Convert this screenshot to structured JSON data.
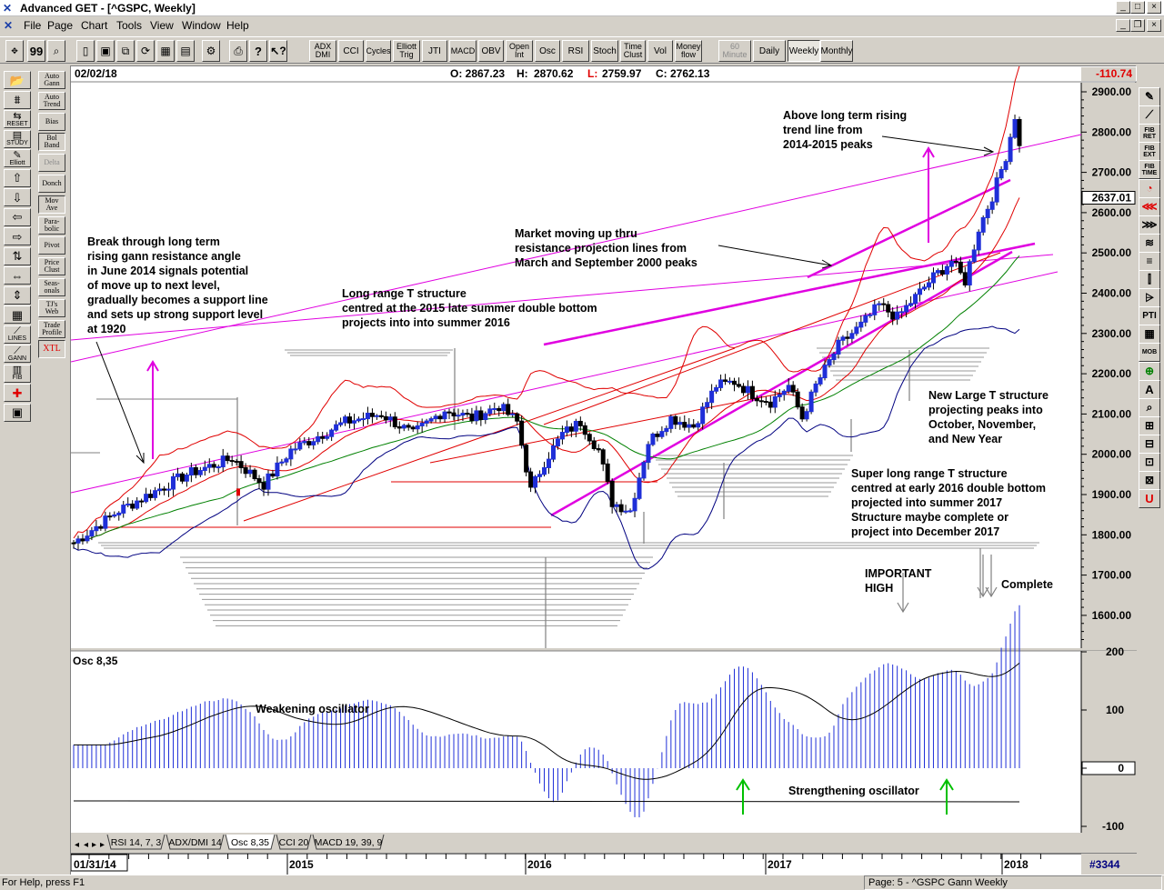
{
  "window": {
    "title": "Advanced GET - [^GSPC, Weekly]",
    "controls": [
      "_",
      "□",
      "×"
    ]
  },
  "menu": [
    "File",
    "Page",
    "Chart",
    "Tools",
    "View",
    "Window",
    "Help"
  ],
  "toolbar": {
    "studies": [
      "ADX DMI",
      "CCI",
      "Cycles",
      "Elliott Trig",
      "JTI",
      "MACD",
      "OBV",
      "Open Int",
      "Osc",
      "RSI",
      "Stoch",
      "Time Clust",
      "Vol",
      "Money flow"
    ],
    "periods": [
      "60 Minute",
      "Daily",
      "Weekly",
      "Monthly"
    ]
  },
  "left_tools": {
    "col1": [
      "",
      "",
      "RESET",
      "STUDY",
      "Elliott",
      "",
      "",
      "",
      "",
      "",
      "",
      "",
      "",
      "LINES",
      "GANN",
      "FIB",
      "",
      ""
    ],
    "col2": [
      "Auto Gann",
      "Auto Trend",
      "Bias",
      "Bol Band",
      "Delta",
      "Donch",
      "Mov Ave",
      "Para- bolic",
      "Pivot",
      "Price Clust",
      "Seas- onals",
      "TJ's Web",
      "Trade Profile",
      "XTL"
    ]
  },
  "right_tools": [
    "",
    "",
    "FIB RET",
    "FIB EXT",
    "FIB TIME",
    "",
    "",
    "",
    "",
    "",
    "",
    "",
    "PTI",
    "",
    "MOB",
    "",
    "A",
    "",
    "",
    "",
    "",
    "",
    "U"
  ],
  "info_bar": {
    "date": "02/02/18",
    "open": "O: 2867.23",
    "high_label": "H:",
    "high": "2870.62",
    "low_label": "L:",
    "low": "2759.97",
    "close": "C: 2762.13",
    "change": "-110.74"
  },
  "price_axis": {
    "labels": [
      "2900.00",
      "2800.00",
      "2700.00",
      "2600.00",
      "2500.00",
      "2400.00",
      "2300.00",
      "2200.00",
      "2100.00",
      "2000.00",
      "1900.00",
      "1800.00",
      "1700.00",
      "1600.00"
    ],
    "current": "2637.01"
  },
  "osc_panel": {
    "title": "Osc 8,35",
    "axis_labels": [
      "200",
      "100",
      "0",
      "-100"
    ]
  },
  "tabs": [
    "RSI 14, 7, 3",
    "ADX/DMI 14",
    "Osc 8,35",
    "CCI 20",
    "MACD 19, 39, 9"
  ],
  "time_axis": {
    "start": "01/31/14",
    "years": [
      "2015",
      "2016",
      "2017",
      "2018"
    ],
    "bar_count": "#3344"
  },
  "annotations": {
    "break_through": [
      "Break through long term",
      "rising gann resistance angle",
      "in June 2014 signals potential",
      "of move up to next level,",
      "gradually becomes a support line",
      "and sets up strong support level",
      "at 1920"
    ],
    "long_range_t": [
      "Long range T structure",
      "centred at the 2015 late summer double bottom",
      "projects into into summer 2016"
    ],
    "market_moving": [
      "Market moving up thru",
      "resistance projection lines from",
      "March and September 2000 peaks"
    ],
    "above_trend": [
      "Above long term rising",
      "trend line from",
      "2014-2015 peaks"
    ],
    "new_large_t": [
      "New Large T structure",
      "projecting peaks into",
      "October, November,",
      "and New Year"
    ],
    "super_long_t": [
      "Super long range T structure",
      "centred at early 2016 double bottom",
      "projected into summer 2017",
      "Structure maybe complete or",
      "project into December 2017"
    ],
    "important_high": [
      "IMPORTANT",
      "HIGH"
    ],
    "complete": "Complete",
    "weakening": "Weakening oscillator",
    "strengthening": "Strengthening oscillator"
  },
  "status": {
    "help": "For Help, press F1",
    "page": "Page: 5 - ^GSPC Gann Weekly"
  },
  "colors": {
    "up_bar": "#1f2fd8",
    "down_bar": "#000000",
    "gann_lines": "#e000e0",
    "bollinger": "#e00000",
    "avg_green": "#008000",
    "avg_navy": "#000080",
    "change": "#e00000",
    "arrow_magenta": "#e000e0",
    "arrow_green": "#00c000"
  }
}
